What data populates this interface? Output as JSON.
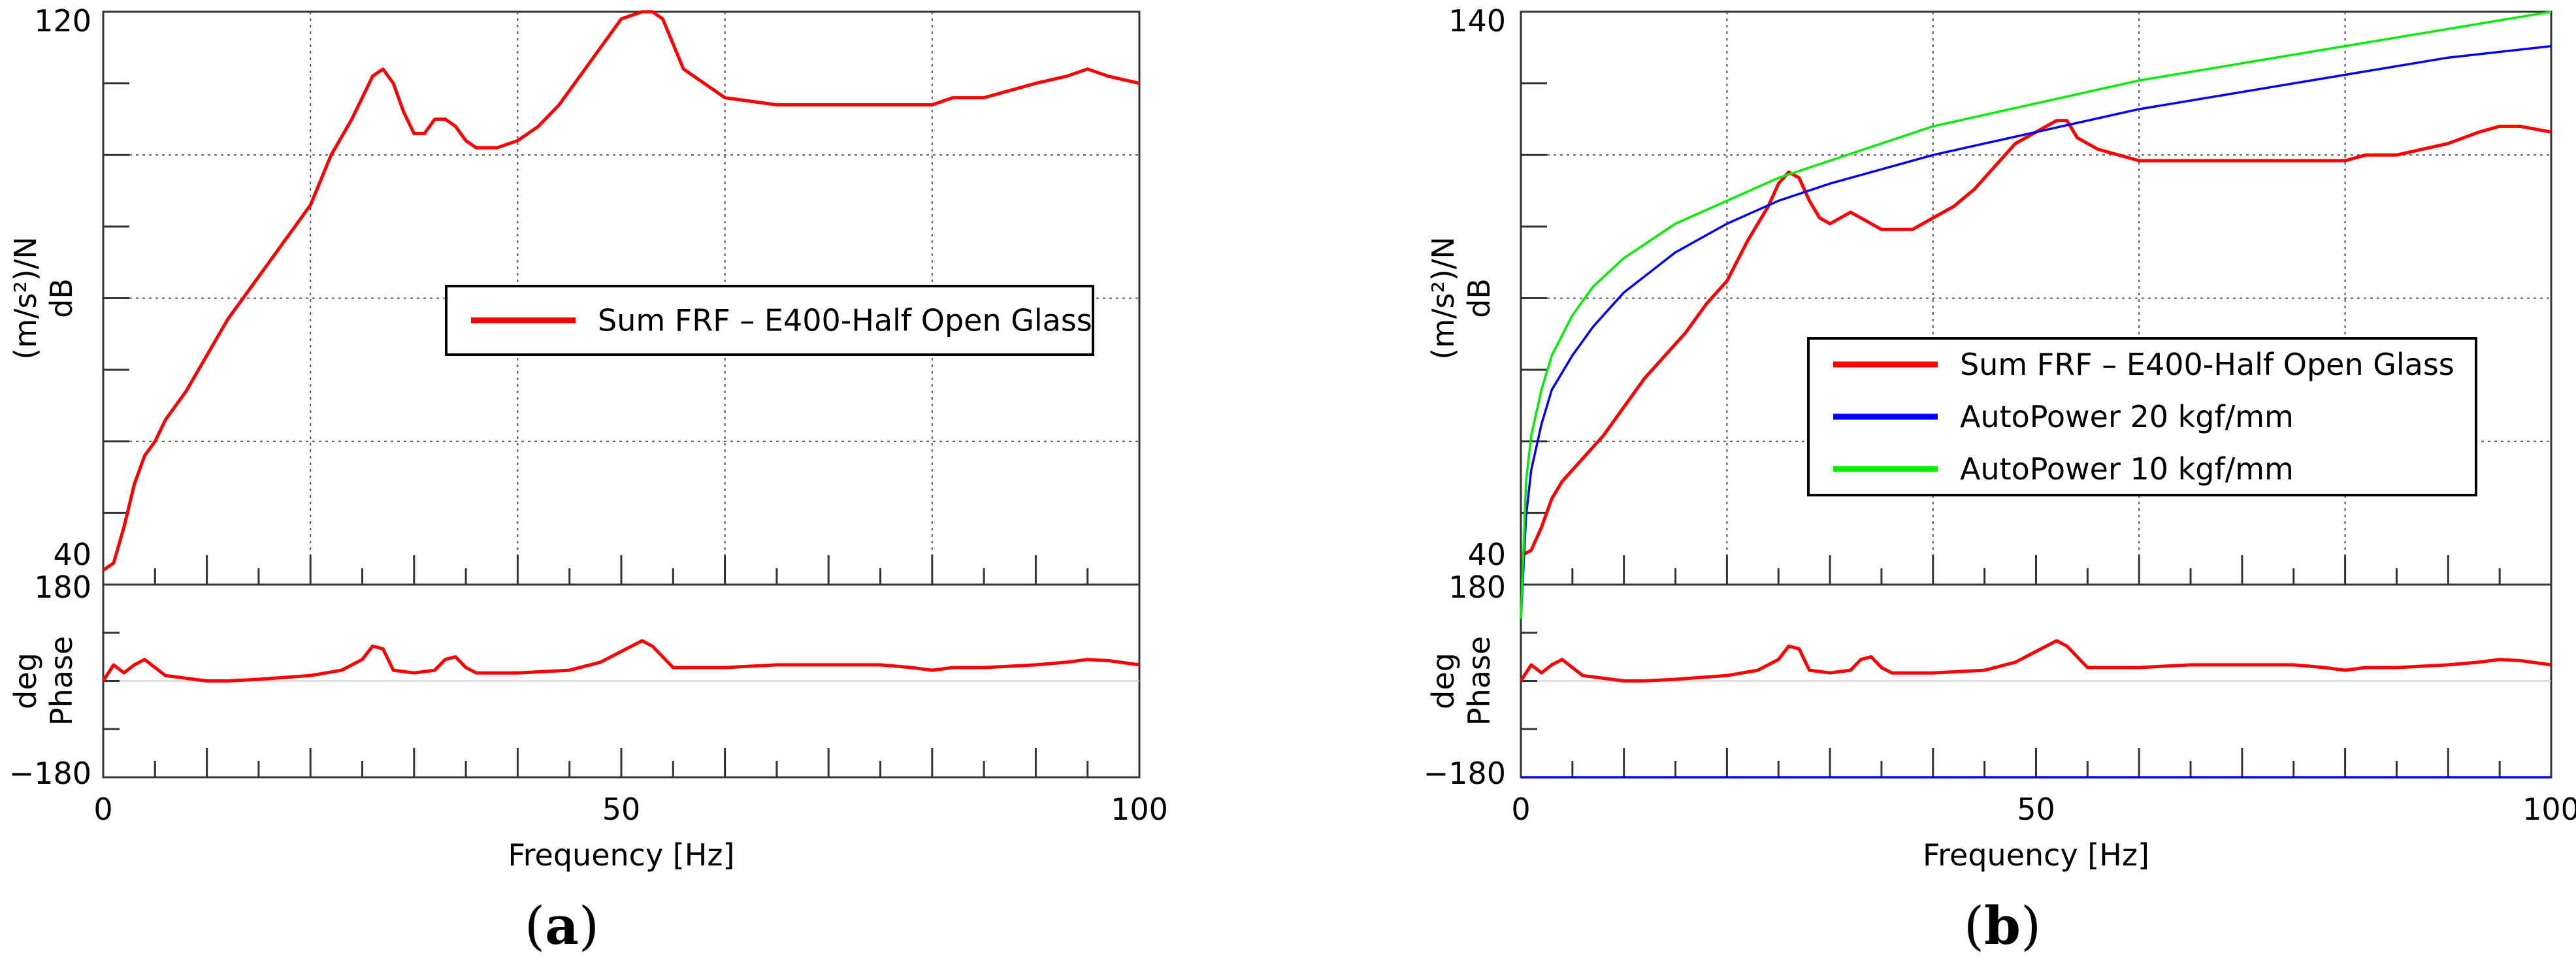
{
  "chart_data": [
    {
      "panel_label": "a",
      "type": "line",
      "xlabel": "Frequency [Hz]",
      "xlim": [
        0,
        100
      ],
      "x_ticks": [
        "0",
        "50",
        "100"
      ],
      "magnitude": {
        "ylabel_line1": "(m/s²)/N",
        "ylabel_line2": "dB",
        "ylim": [
          40,
          120
        ],
        "y_ticks": [
          "120",
          "40"
        ],
        "grid": true,
        "legend_position": "center-right",
        "series": [
          {
            "name": "Sum FRF – E400-Half Open Glass",
            "color": "#ff0000",
            "x": [
              0,
              1,
              2,
              3,
              4,
              5,
              6,
              7,
              8,
              10,
              12,
              14,
              16,
              18,
              20,
              22,
              24,
              25,
              26,
              27,
              28,
              29,
              30,
              31,
              32,
              33,
              34,
              35,
              36,
              37,
              38,
              40,
              42,
              44,
              46,
              48,
              50,
              52,
              53,
              54,
              56,
              60,
              65,
              70,
              75,
              80,
              82,
              85,
              90,
              93,
              95,
              97,
              100
            ],
            "values": [
              42,
              43,
              48,
              54,
              58,
              60,
              63,
              65,
              67,
              72,
              77,
              81,
              85,
              89,
              93,
              100,
              105,
              108,
              111,
              112,
              110,
              106,
              103,
              103,
              105,
              105,
              104,
              102,
              101,
              101,
              101,
              102,
              104,
              107,
              111,
              115,
              119,
              120,
              120,
              119,
              112,
              108,
              107,
              107,
              107,
              107,
              108,
              108,
              110,
              111,
              112,
              111,
              110
            ]
          }
        ]
      },
      "phase": {
        "ylabel_line1": "deg",
        "ylabel_line2": "Phase",
        "ylim": [
          -180,
          180
        ],
        "y_ticks": [
          "180",
          "-180"
        ],
        "series": [
          {
            "name": "Sum FRF – E400-Half Open Glass",
            "color": "#ff0000",
            "x": [
              0,
              1,
              2,
              3,
              4,
              5,
              6,
              8,
              10,
              12,
              15,
              20,
              23,
              25,
              26,
              27,
              28,
              30,
              32,
              33,
              34,
              35,
              36,
              40,
              45,
              48,
              50,
              52,
              53,
              55,
              60,
              65,
              70,
              72,
              75,
              78,
              80,
              82,
              85,
              90,
              93,
              95,
              97,
              100
            ],
            "values": [
              0,
              30,
              15,
              30,
              40,
              25,
              10,
              5,
              0,
              0,
              3,
              10,
              20,
              40,
              65,
              60,
              20,
              15,
              20,
              40,
              45,
              25,
              15,
              15,
              20,
              35,
              55,
              75,
              65,
              25,
              25,
              30,
              30,
              30,
              30,
              25,
              20,
              25,
              25,
              30,
              35,
              40,
              38,
              30
            ]
          }
        ]
      }
    },
    {
      "panel_label": "b",
      "type": "line",
      "xlabel": "Frequency [Hz]",
      "xlim": [
        0,
        100
      ],
      "x_ticks": [
        "0",
        "50",
        "100"
      ],
      "magnitude": {
        "ylabel_line1": "(m/s²)/N",
        "ylabel_line2": "dB",
        "ylim": [
          40,
          140
        ],
        "y_ticks": [
          "140",
          "40"
        ],
        "grid": true,
        "legend_position": "center-right",
        "series": [
          {
            "name": "Sum FRF – E400-Half Open Glass",
            "color": "#ff0000",
            "x": [
              0,
              1,
              2,
              3,
              4,
              5,
              6,
              7,
              8,
              10,
              12,
              14,
              16,
              18,
              20,
              22,
              24,
              25,
              26,
              27,
              28,
              29,
              30,
              31,
              32,
              33,
              34,
              35,
              36,
              37,
              38,
              40,
              42,
              44,
              46,
              48,
              50,
              52,
              53,
              54,
              56,
              60,
              65,
              70,
              75,
              80,
              82,
              85,
              90,
              93,
              95,
              97,
              100
            ],
            "values": [
              45,
              46,
              50,
              55,
              58,
              60,
              62,
              64,
              66,
              71,
              76,
              80,
              84,
              89,
              93,
              100,
              106,
              110,
              112,
              111,
              107,
              104,
              103,
              104,
              105,
              104,
              103,
              102,
              102,
              102,
              102,
              104,
              106,
              109,
              113,
              117,
              119,
              121,
              121,
              118,
              116,
              114,
              114,
              114,
              114,
              114,
              115,
              115,
              117,
              119,
              120,
              120,
              119
            ]
          },
          {
            "name": "AutoPower 20 kgf/mm",
            "color": "#0000ff",
            "x": [
              0,
              0.5,
              1,
              2,
              3,
              5,
              7,
              10,
              15,
              20,
              25,
              30,
              40,
              50,
              60,
              70,
              80,
              90,
              100
            ],
            "values": [
              34,
              52,
              60,
              68,
              74,
              80,
              85,
              91,
              98,
              103,
              107,
              110,
              115,
              119,
              123,
              126,
              129,
              132,
              134
            ]
          },
          {
            "name": "AutoPower 10 kgf/mm",
            "color": "#00ee00",
            "x": [
              0,
              0.5,
              1,
              2,
              3,
              5,
              7,
              10,
              15,
              20,
              25,
              30,
              40,
              50,
              60,
              70,
              80,
              90,
              100
            ],
            "values": [
              34,
              58,
              66,
              74,
              80,
              87,
              92,
              97,
              103,
              107,
              111,
              114,
              120,
              124,
              128,
              131,
              134,
              137,
              140
            ]
          }
        ]
      },
      "phase": {
        "ylabel_line1": "deg",
        "ylabel_line2": "Phase",
        "ylim": [
          -180,
          180
        ],
        "y_ticks": [
          "180",
          "-180"
        ],
        "series": [
          {
            "name": "Sum FRF – E400-Half Open Glass",
            "color": "#ff0000",
            "x": [
              0,
              1,
              2,
              3,
              4,
              5,
              6,
              8,
              10,
              12,
              15,
              20,
              23,
              25,
              26,
              27,
              28,
              30,
              32,
              33,
              34,
              35,
              36,
              40,
              45,
              48,
              50,
              52,
              53,
              55,
              60,
              65,
              70,
              72,
              75,
              78,
              80,
              82,
              85,
              90,
              93,
              95,
              97,
              100
            ],
            "values": [
              0,
              30,
              15,
              30,
              40,
              25,
              10,
              5,
              0,
              0,
              3,
              10,
              20,
              40,
              65,
              60,
              20,
              15,
              20,
              40,
              45,
              25,
              15,
              15,
              20,
              35,
              55,
              75,
              65,
              25,
              25,
              30,
              30,
              30,
              30,
              25,
              20,
              25,
              25,
              30,
              35,
              40,
              38,
              30
            ]
          },
          {
            "name": "AutoPower 20 kgf/mm",
            "color": "#0000ff",
            "x": [
              0,
              100
            ],
            "values": [
              -180,
              -180
            ]
          }
        ]
      }
    }
  ]
}
